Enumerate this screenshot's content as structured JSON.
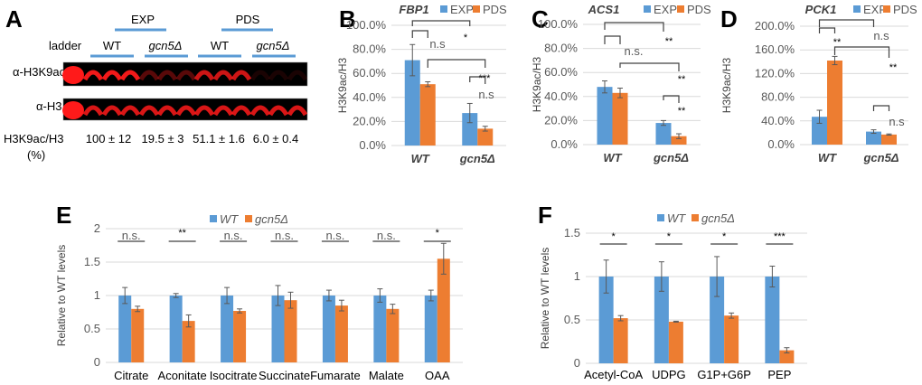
{
  "colors": {
    "blue": "#5B9BD5",
    "orange": "#ED7D31",
    "grid": "#D9D9D9",
    "band": "#FF1A1A",
    "bracket": "#404040"
  },
  "panel_a": {
    "label": "A",
    "conditions": [
      "EXP",
      "PDS"
    ],
    "ladder_label": "ladder",
    "strains": [
      "WT",
      "gcn5Δ",
      "WT",
      "gcn5Δ"
    ],
    "blots": [
      {
        "label": "α-H3K9ac",
        "intensities": [
          1.0,
          0.95,
          0.95,
          0.95,
          0.35,
          0.35,
          0.35,
          0.8,
          0.8,
          0.8,
          0.1,
          0.1,
          0.1
        ]
      },
      {
        "label": "α-H3",
        "intensities": [
          1.0,
          0.85,
          0.85,
          0.85,
          0.85,
          0.85,
          0.85,
          0.85,
          0.85,
          0.85,
          0.85,
          0.85,
          0.85
        ]
      }
    ],
    "ratio_label": "H3K9ac/H3",
    "ratio_unit": "(%)",
    "ratios": [
      "100 ± 12",
      "19.5 ± 3",
      "51.1 ± 1.6",
      "6.0 ± 0.4"
    ]
  },
  "chart_data": [
    {
      "panel": "B",
      "type": "bar",
      "title": "FBP1",
      "categories": [
        "WT",
        "gcn5Δ"
      ],
      "series": [
        {
          "name": "EXP",
          "values": [
            71,
            27
          ],
          "errors": [
            13,
            8
          ]
        },
        {
          "name": "PDS",
          "values": [
            51,
            14
          ],
          "errors": [
            2,
            2
          ]
        }
      ],
      "ylabel": "H3K9ac/H3",
      "ylim": [
        0,
        100
      ],
      "ticks": [
        "0.0%",
        "20.0%",
        "40.0%",
        "60.0%",
        "80.0%",
        "100.0%"
      ],
      "tick_values": [
        0,
        20,
        40,
        60,
        80,
        100
      ],
      "legend": "top-right",
      "significance": [
        {
          "from": "WT-EXP",
          "to": "gcn5Δ-EXP",
          "label": "*"
        },
        {
          "from": "WT-EXP",
          "to": "WT-PDS",
          "label": "n.s"
        },
        {
          "from": "WT-PDS",
          "to": "gcn5Δ-PDS",
          "label": "***"
        },
        {
          "from": "gcn5Δ-EXP",
          "to": "gcn5Δ-PDS",
          "label": "n.s"
        }
      ]
    },
    {
      "panel": "C",
      "type": "bar",
      "title": "ACS1",
      "categories": [
        "WT",
        "gcn5Δ"
      ],
      "series": [
        {
          "name": "EXP",
          "values": [
            48,
            18
          ],
          "errors": [
            5,
            2
          ]
        },
        {
          "name": "PDS",
          "values": [
            43,
            7
          ],
          "errors": [
            4,
            2
          ]
        }
      ],
      "ylabel": "H3K9ac/H3",
      "ylim": [
        0,
        100
      ],
      "ticks": [
        "0.0%",
        "20.0%",
        "40.0%",
        "60.0%",
        "80.0%",
        "100.0%"
      ],
      "tick_values": [
        0,
        20,
        40,
        60,
        80,
        100
      ],
      "legend": "top-right",
      "significance": [
        {
          "from": "WT-EXP",
          "to": "gcn5Δ-EXP",
          "label": "**"
        },
        {
          "from": "WT-EXP",
          "to": "WT-PDS",
          "label": "n.s."
        },
        {
          "from": "WT-PDS",
          "to": "gcn5Δ-PDS",
          "label": "**"
        },
        {
          "from": "gcn5Δ-EXP",
          "to": "gcn5Δ-PDS",
          "label": "**"
        }
      ]
    },
    {
      "panel": "D",
      "type": "bar",
      "title": "PCK1",
      "categories": [
        "WT",
        "gcn5Δ"
      ],
      "series": [
        {
          "name": "EXP",
          "values": [
            47,
            22
          ],
          "errors": [
            11,
            3
          ]
        },
        {
          "name": "PDS",
          "values": [
            142,
            17
          ],
          "errors": [
            7,
            1
          ]
        }
      ],
      "ylabel": "H3K9ac/H3",
      "ylim": [
        0,
        200
      ],
      "ticks": [
        "0.0%",
        "40.0%",
        "80.0%",
        "120.0%",
        "160.0%",
        "200.0%"
      ],
      "tick_values": [
        0,
        40,
        80,
        120,
        160,
        200
      ],
      "legend": "top-right",
      "significance": [
        {
          "from": "WT-EXP",
          "to": "gcn5Δ-EXP",
          "label": "n.s"
        },
        {
          "from": "WT-EXP",
          "to": "WT-PDS",
          "label": "**"
        },
        {
          "from": "WT-PDS",
          "to": "gcn5Δ-PDS",
          "label": "**"
        },
        {
          "from": "gcn5Δ-EXP",
          "to": "gcn5Δ-PDS",
          "label": "n.s"
        }
      ]
    },
    {
      "panel": "E",
      "type": "bar",
      "title": "",
      "categories": [
        "Citrate",
        "Aconitate",
        "Isocitrate",
        "Succinate",
        "Fumarate",
        "Malate",
        "OAA"
      ],
      "series": [
        {
          "name": "WT",
          "values": [
            1,
            1,
            1,
            1,
            1,
            1,
            1
          ],
          "errors": [
            0.12,
            0.03,
            0.12,
            0.15,
            0.08,
            0.1,
            0.08
          ]
        },
        {
          "name": "gcn5Δ",
          "values": [
            0.8,
            0.62,
            0.77,
            0.93,
            0.85,
            0.8,
            1.55
          ],
          "errors": [
            0.04,
            0.09,
            0.03,
            0.12,
            0.08,
            0.07,
            0.23
          ]
        }
      ],
      "ylabel": "Relative to WT levels",
      "ylim": [
        0,
        2
      ],
      "ticks": [
        "0",
        "0.5",
        "1",
        "1.5",
        "2"
      ],
      "tick_values": [
        0,
        0.5,
        1,
        1.5,
        2
      ],
      "legend": "top-center",
      "significance": [
        "n.s.",
        "**",
        "n.s.",
        "n.s.",
        "n.s.",
        "n.s.",
        "*"
      ]
    },
    {
      "panel": "F",
      "type": "bar",
      "title": "",
      "categories": [
        "Acetyl-CoA",
        "UDPG",
        "G1P+G6P",
        "PEP"
      ],
      "series": [
        {
          "name": "WT",
          "values": [
            1,
            1,
            1,
            1
          ],
          "errors": [
            0.19,
            0.17,
            0.23,
            0.12
          ]
        },
        {
          "name": "gcn5Δ",
          "values": [
            0.52,
            0.48,
            0.55,
            0.15
          ],
          "errors": [
            0.03,
            0.005,
            0.03,
            0.03
          ]
        }
      ],
      "ylabel": "Relative to WT levels",
      "ylim": [
        0,
        1.5
      ],
      "ticks": [
        "0",
        "0.5",
        "1",
        "1.5"
      ],
      "tick_values": [
        0,
        0.5,
        1,
        1.5
      ],
      "legend": "top-center",
      "significance": [
        "*",
        "*",
        "*",
        "***"
      ]
    }
  ]
}
